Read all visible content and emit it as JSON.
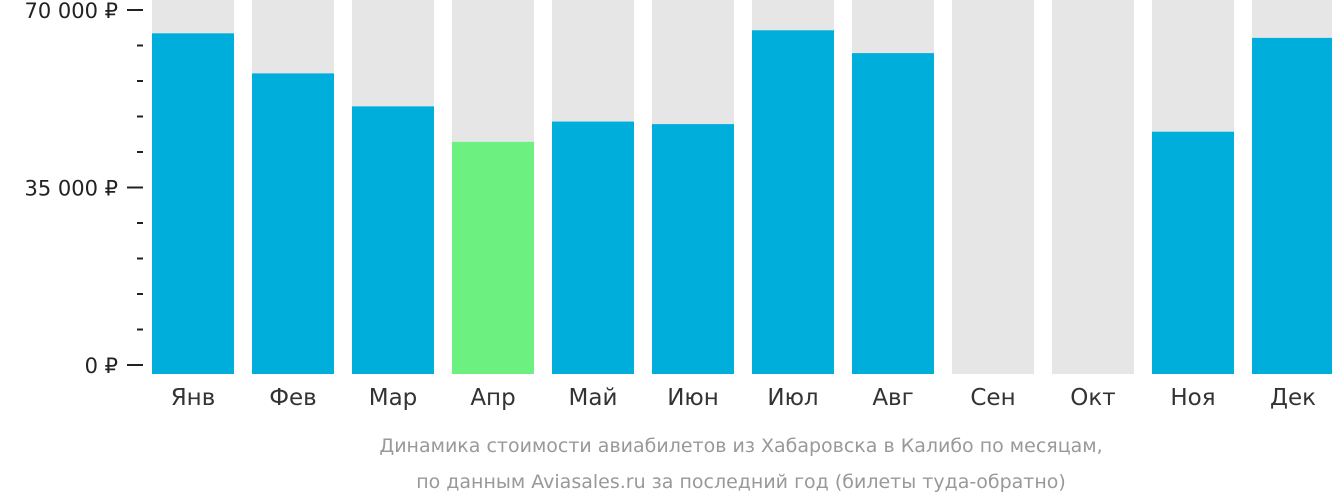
{
  "chart_data": {
    "type": "bar",
    "categories": [
      "Янв",
      "Фев",
      "Мар",
      "Апр",
      "Май",
      "Июн",
      "Июл",
      "Авг",
      "Сен",
      "Окт",
      "Ноя",
      "Дек"
    ],
    "values": [
      65400,
      57500,
      51000,
      44000,
      48000,
      47500,
      66000,
      61500,
      null,
      null,
      46000,
      64500
    ],
    "highlight_index": 3,
    "ylim": [
      0,
      70000
    ],
    "yticks": [
      {
        "value": 0,
        "label": "0 ₽"
      },
      {
        "value": 35000,
        "label": "35 000 ₽"
      },
      {
        "value": 70000,
        "label": "70 000 ₽"
      }
    ],
    "minor_tick_step": 7000,
    "caption": [
      "Динамика стоимости авиабилетов из Хабаровска в Калибо по месяцам,",
      "по данным Aviasales.ru за последний год (билеты туда-обратно)"
    ],
    "colors": {
      "bar": "#00AEDC",
      "highlight": "#6CF07F",
      "background_bar": "#E6E6E6",
      "axis": "#222222"
    }
  }
}
